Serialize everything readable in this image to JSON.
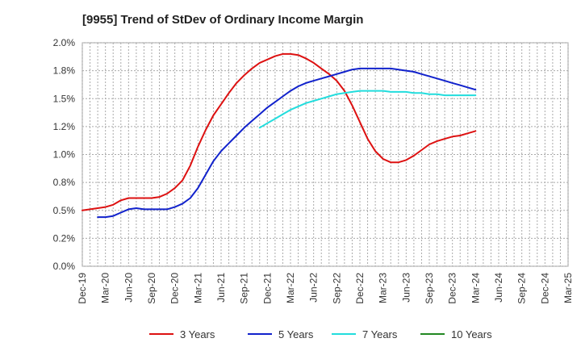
{
  "chart_data": {
    "type": "line",
    "title": "[9955]  Trend of StDev of Ordinary Income Margin",
    "xlabel": "",
    "ylabel": "",
    "x_ticks": [
      "Dec-19",
      "Mar-20",
      "Jun-20",
      "Sep-20",
      "Dec-20",
      "Mar-21",
      "Jun-21",
      "Sep-21",
      "Dec-21",
      "Mar-22",
      "Jun-22",
      "Sep-22",
      "Dec-22",
      "Mar-23",
      "Jun-23",
      "Sep-23",
      "Dec-23",
      "Mar-24",
      "Jun-24",
      "Sep-24",
      "Dec-24",
      "Mar-25"
    ],
    "y_ticks": [
      "0.0%",
      "0.2%",
      "0.5%",
      "0.8%",
      "1.0%",
      "1.2%",
      "1.5%",
      "1.8%",
      "2.0%"
    ],
    "ylim": [
      0,
      2.0
    ],
    "grid": true,
    "legend_position": "bottom",
    "series": [
      {
        "name": "3 Years",
        "color": "#dd1111",
        "start_index": 0,
        "values": [
          0.5,
          0.51,
          0.52,
          0.53,
          0.55,
          0.59,
          0.61,
          0.61,
          0.61,
          0.61,
          0.62,
          0.65,
          0.7,
          0.77,
          0.9,
          1.07,
          1.22,
          1.35,
          1.45,
          1.55,
          1.64,
          1.71,
          1.77,
          1.82,
          1.85,
          1.88,
          1.9,
          1.9,
          1.89,
          1.86,
          1.82,
          1.77,
          1.72,
          1.66,
          1.57,
          1.44,
          1.29,
          1.14,
          1.03,
          0.96,
          0.93,
          0.93,
          0.95,
          0.99,
          1.04,
          1.09,
          1.12,
          1.14,
          1.16,
          1.17,
          1.19,
          1.21
        ]
      },
      {
        "name": "5 Years",
        "color": "#1122cc",
        "start_index": 2,
        "values": [
          0.44,
          0.44,
          0.45,
          0.48,
          0.51,
          0.52,
          0.51,
          0.51,
          0.51,
          0.51,
          0.53,
          0.56,
          0.61,
          0.7,
          0.82,
          0.94,
          1.03,
          1.1,
          1.17,
          1.24,
          1.3,
          1.36,
          1.42,
          1.47,
          1.52,
          1.57,
          1.61,
          1.64,
          1.66,
          1.68,
          1.7,
          1.72,
          1.74,
          1.76,
          1.77,
          1.77,
          1.77,
          1.77,
          1.77,
          1.76,
          1.75,
          1.74,
          1.72,
          1.7,
          1.68,
          1.66,
          1.64,
          1.62,
          1.6,
          1.58
        ]
      },
      {
        "name": "7 Years",
        "color": "#22dddd",
        "start_index": 23,
        "values": [
          1.24,
          1.28,
          1.32,
          1.36,
          1.4,
          1.43,
          1.46,
          1.48,
          1.5,
          1.52,
          1.54,
          1.55,
          1.56,
          1.57,
          1.57,
          1.57,
          1.57,
          1.56,
          1.56,
          1.56,
          1.55,
          1.55,
          1.54,
          1.54,
          1.53,
          1.53,
          1.53,
          1.53,
          1.53
        ]
      },
      {
        "name": "10 Years",
        "color": "#228822",
        "start_index": 0,
        "values": []
      }
    ]
  }
}
